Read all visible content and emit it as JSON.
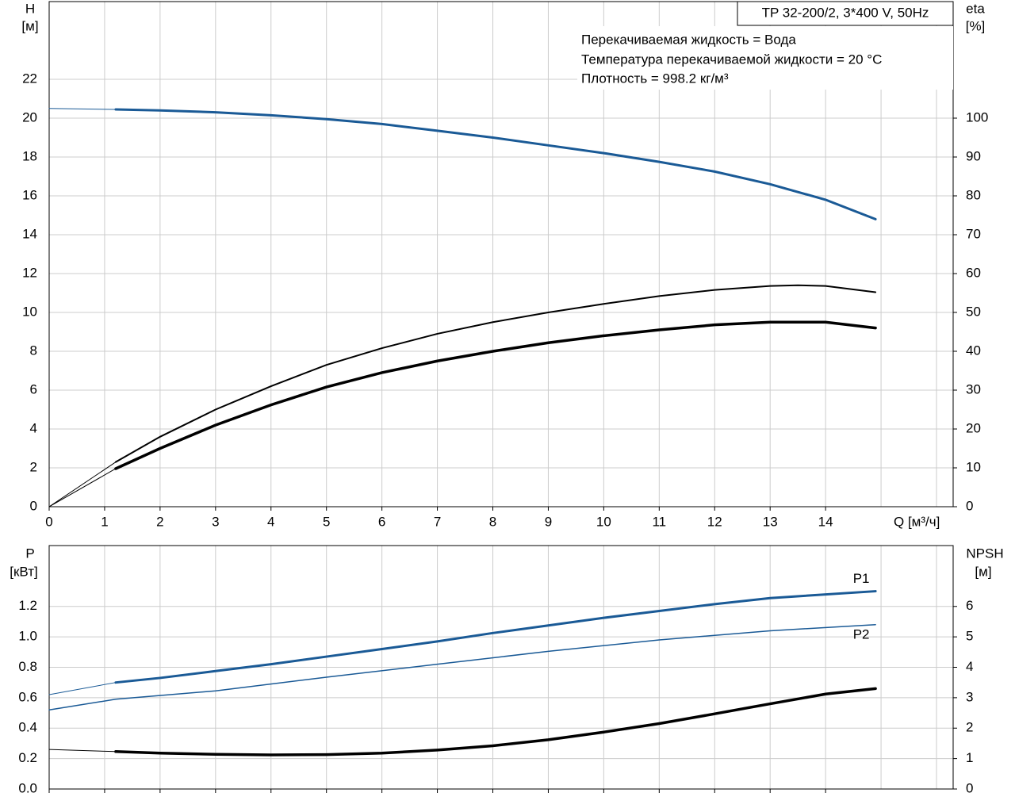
{
  "chart_data": [
    {
      "type": "line",
      "title": "TP 32-200/2, 3*400 V, 50Hz",
      "annotations": [
        "Перекачиваемая жидкость = Вода",
        "Температура перекачиваемой жидкости = 20 °C",
        "Плотность = 998.2 кг/м³"
      ],
      "ylabel": "H",
      "yunit": "[м]",
      "y2label": "eta",
      "y2unit": "[%]",
      "xlabel": "Q [м³/ч]",
      "xlim": [
        0,
        16.3
      ],
      "xticks": [
        0,
        1,
        2,
        3,
        4,
        5,
        6,
        7,
        8,
        9,
        10,
        11,
        12,
        13,
        14
      ],
      "ylim": [
        0,
        26
      ],
      "yticks": [
        0,
        2,
        4,
        6,
        8,
        10,
        12,
        14,
        16,
        18,
        20,
        22
      ],
      "y2lim": [
        0,
        130
      ],
      "y2ticks": [
        0,
        10,
        20,
        30,
        40,
        50,
        60,
        70,
        80,
        90,
        100
      ],
      "grid": true,
      "series": [
        {
          "color": "#1a5a96",
          "width": 1,
          "x": [
            0,
            1.2
          ],
          "values": [
            20.5,
            20.45
          ]
        },
        {
          "color": "#1a5a96",
          "width": 3,
          "x": [
            1.2,
            2,
            3,
            4,
            5,
            6,
            7,
            8,
            9,
            10,
            11,
            12,
            13,
            14,
            14.9
          ],
          "values": [
            20.45,
            20.4,
            20.3,
            20.15,
            19.95,
            19.7,
            19.35,
            19.0,
            18.6,
            18.2,
            17.75,
            17.25,
            16.6,
            15.8,
            14.8
          ]
        },
        {
          "color": "#000000",
          "width": 1,
          "axis": "y2",
          "x": [
            0,
            1.2
          ],
          "values": [
            0,
            11.5
          ]
        },
        {
          "color": "#000000",
          "width": 2,
          "axis": "y2",
          "x": [
            1.2,
            2,
            3,
            4,
            5,
            6,
            7,
            8,
            9,
            10,
            11,
            12,
            13,
            13.5,
            14,
            14.9
          ],
          "values": [
            11.5,
            18,
            25,
            31,
            36.5,
            40.8,
            44.5,
            47.5,
            50,
            52.2,
            54.2,
            55.8,
            56.8,
            57,
            56.8,
            55.2
          ]
        },
        {
          "color": "#000000",
          "width": 1,
          "axis": "y2",
          "x": [
            0,
            1.2
          ],
          "values": [
            0,
            9.8
          ]
        },
        {
          "color": "#000000",
          "width": 3.5,
          "axis": "y2",
          "x": [
            1.2,
            2,
            3,
            4,
            5,
            6,
            7,
            8,
            9,
            10,
            11,
            12,
            13,
            14,
            14.9
          ],
          "values": [
            9.8,
            15,
            21,
            26.2,
            30.8,
            34.5,
            37.5,
            40,
            42.2,
            44,
            45.5,
            46.8,
            47.5,
            47.5,
            46
          ]
        }
      ]
    },
    {
      "type": "line",
      "ylabel": "P",
      "yunit": "[кВт]",
      "y2label": "NPSH",
      "y2unit": "[м]",
      "xlim": [
        0,
        16.3
      ],
      "ylim": [
        0,
        1.6
      ],
      "yticks": [
        {
          "value": 0,
          "label": "0.0"
        },
        0.2,
        0.4,
        0.6,
        0.8,
        {
          "value": 1,
          "label": "1.0"
        },
        1.2
      ],
      "y2lim": [
        0,
        8
      ],
      "y2ticks": [
        0,
        1,
        2,
        3,
        4,
        5,
        6
      ],
      "grid": true,
      "series": [
        {
          "color": "#1a5a96",
          "width": 1,
          "x": [
            0,
            1.2
          ],
          "values": [
            0.62,
            0.7
          ]
        },
        {
          "name": "P1",
          "color": "#1a5a96",
          "width": 3,
          "x": [
            1.2,
            2,
            3,
            4,
            5,
            6,
            7,
            8,
            9,
            10,
            11,
            12,
            13,
            14.9
          ],
          "values": [
            0.7,
            0.73,
            0.775,
            0.82,
            0.87,
            0.92,
            0.97,
            1.025,
            1.075,
            1.125,
            1.17,
            1.215,
            1.255,
            1.3
          ]
        },
        {
          "name": "P2",
          "color": "#1a5a96",
          "width": 1.5,
          "x": [
            0,
            1.2,
            3,
            5,
            7,
            9,
            11,
            13,
            14.9
          ],
          "values": [
            0.52,
            0.59,
            0.645,
            0.735,
            0.82,
            0.905,
            0.98,
            1.04,
            1.08
          ]
        },
        {
          "color": "#000000",
          "width": 1,
          "axis": "y2",
          "x": [
            0,
            1.2
          ],
          "values": [
            1.3,
            1.23
          ]
        },
        {
          "color": "#000000",
          "width": 3.5,
          "axis": "y2",
          "x": [
            1.2,
            2,
            3,
            4,
            5,
            6,
            7,
            8,
            9,
            10,
            11,
            12,
            13,
            14,
            14.9
          ],
          "values": [
            1.23,
            1.18,
            1.14,
            1.12,
            1.13,
            1.18,
            1.28,
            1.42,
            1.62,
            1.87,
            2.15,
            2.47,
            2.8,
            3.12,
            3.3
          ]
        }
      ]
    }
  ]
}
